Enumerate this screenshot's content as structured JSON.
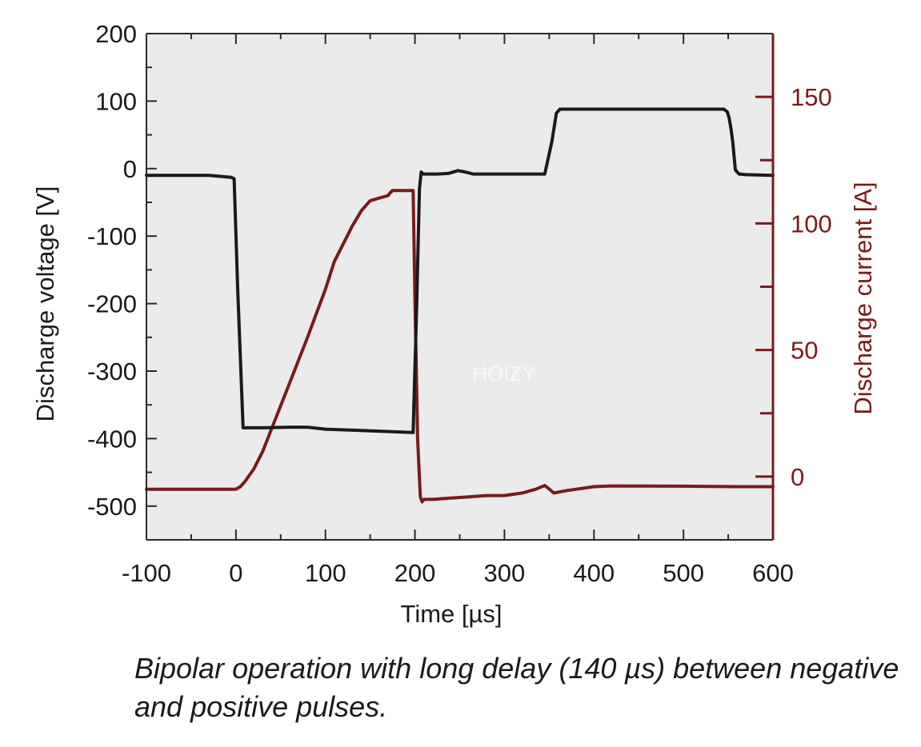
{
  "chart_data": {
    "type": "line",
    "title": "",
    "xlabel": "Time [µs]",
    "ylabel_left": "Discharge voltage [V]",
    "ylabel_right": "Discharge current [A]",
    "xlim": [
      -100,
      600
    ],
    "ylim_left": [
      -550,
      200
    ],
    "ylim_right": [
      -25,
      175
    ],
    "x_ticks": [
      -100,
      0,
      100,
      200,
      300,
      400,
      500,
      600
    ],
    "x_tick_labels": [
      "-100",
      "0",
      "100",
      "200",
      "300",
      "400",
      "500",
      "600"
    ],
    "y_left_ticks": [
      200,
      100,
      0,
      -100,
      -200,
      -300,
      -400,
      -500
    ],
    "y_left_tick_labels": [
      "200",
      "100",
      "0",
      "-100",
      "-200",
      "-300",
      "-400",
      "-500"
    ],
    "y_right_ticks": [
      150,
      100,
      50,
      0
    ],
    "y_right_tick_labels": [
      "150",
      "100",
      "50",
      "0"
    ],
    "series": [
      {
        "name": "Discharge voltage",
        "axis": "left",
        "color": "#1a1a1a",
        "x": [
          -100,
          -30,
          -5,
          -2,
          2,
          8,
          30,
          60,
          80,
          100,
          140,
          180,
          198,
          202,
          205,
          207,
          209,
          212,
          225,
          238,
          248,
          256,
          265,
          300,
          340,
          345,
          353,
          358,
          362,
          400,
          500,
          545,
          549,
          551,
          553,
          555,
          558,
          562,
          570,
          600
        ],
        "y": [
          -10,
          -10,
          -13,
          -15,
          -180,
          -384,
          -384,
          -383,
          -383,
          -386,
          -388,
          -390,
          -391,
          -200,
          -30,
          -5,
          -8,
          -8,
          -8,
          -7,
          -3,
          -5,
          -8,
          -8,
          -8,
          -8,
          40,
          82,
          88,
          88,
          88,
          88,
          84,
          75,
          60,
          40,
          -2,
          -8,
          -9,
          -10
        ]
      },
      {
        "name": "Discharge current",
        "axis": "right",
        "color": "#7a1a1a",
        "x": [
          -100,
          0,
          5,
          10,
          20,
          30,
          40,
          60,
          80,
          100,
          110,
          120,
          130,
          140,
          150,
          160,
          170,
          172,
          175,
          180,
          185,
          190,
          194,
          196,
          197,
          198,
          200,
          203,
          206,
          208,
          210,
          220,
          240,
          260,
          280,
          300,
          320,
          335,
          345,
          352,
          355,
          370,
          400,
          420,
          500,
          560,
          600
        ],
        "y": [
          -5,
          -5,
          -4,
          -2,
          3,
          10,
          19,
          37,
          55,
          74,
          85,
          92,
          99,
          105,
          109,
          110,
          111,
          112,
          113,
          113,
          113,
          113,
          113,
          113,
          113,
          113,
          70,
          15,
          -8,
          -10,
          -9,
          -9,
          -8.5,
          -8,
          -7.5,
          -7.5,
          -6.5,
          -5,
          -3.5,
          -5.5,
          -6.5,
          -5.5,
          -4,
          -3.7,
          -3.8,
          -4,
          -4
        ]
      }
    ]
  },
  "watermark": "HOIZY",
  "caption": "Bipolar operation with long delay (140 µs) between negative and positive pulses."
}
